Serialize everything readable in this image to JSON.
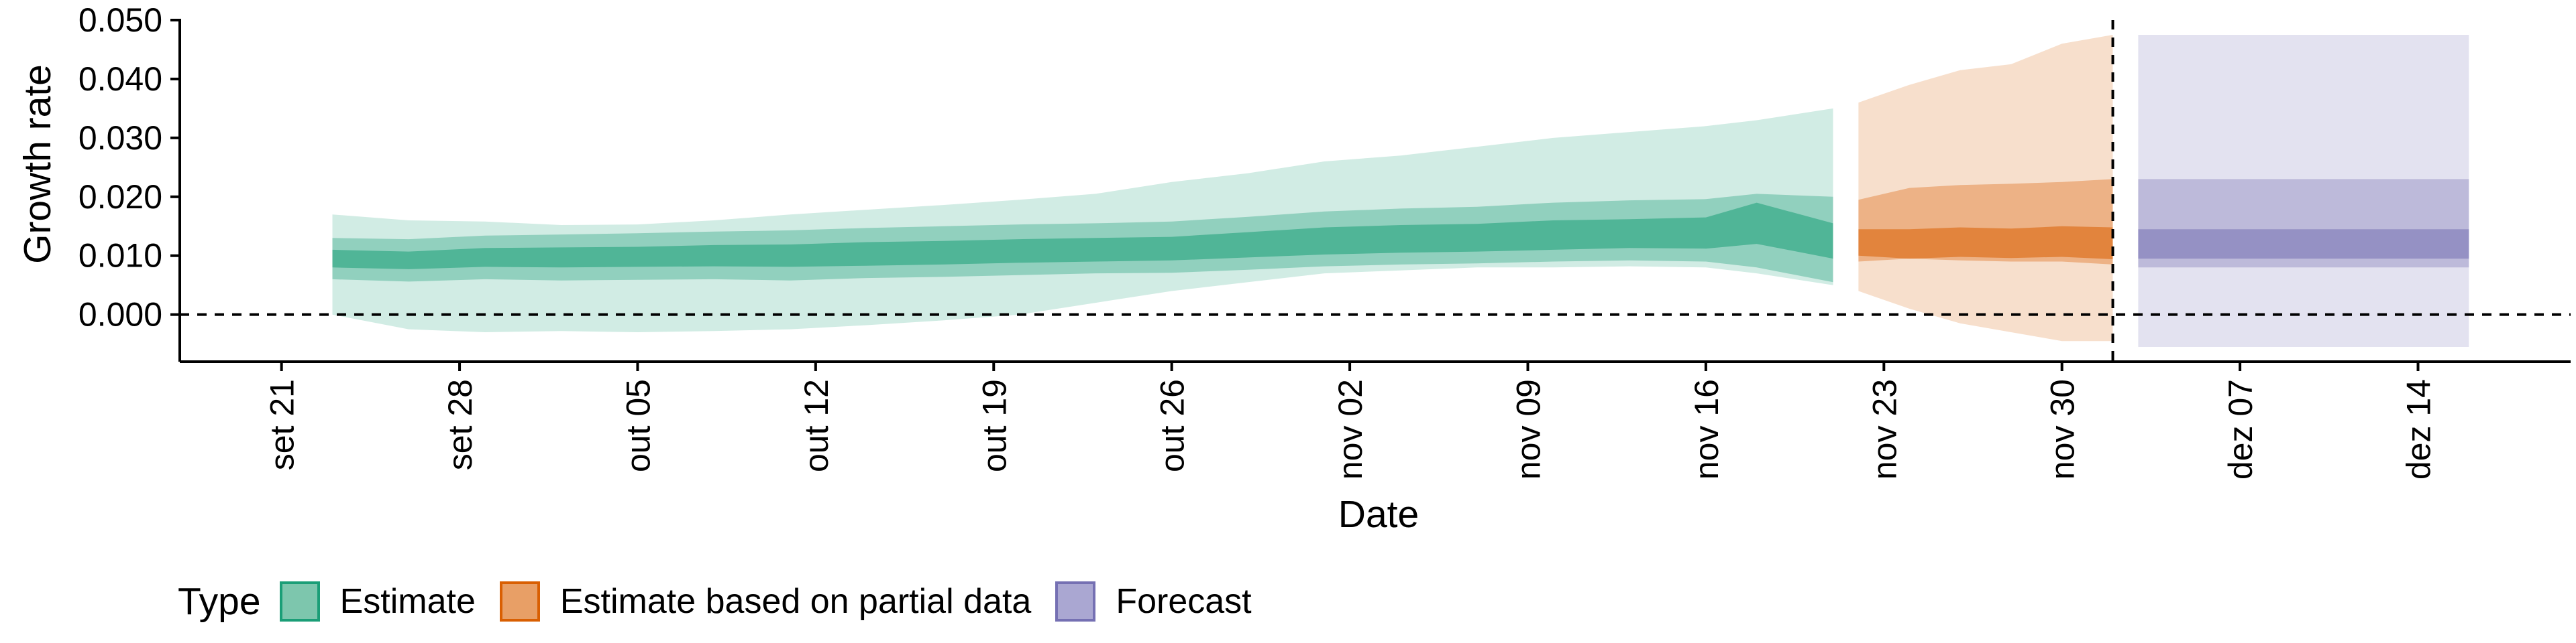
{
  "chart_data": {
    "type": "area",
    "title": "",
    "xlabel": "Date",
    "ylabel": "Growth rate",
    "ylim": [
      -0.008,
      0.05
    ],
    "xlim": [
      "2020-09-17",
      "2020-12-20"
    ],
    "y_ticks": [
      "0.000",
      "0.010",
      "0.020",
      "0.030",
      "0.040",
      "0.050"
    ],
    "x_ticks": [
      {
        "date": "2020-09-21",
        "label": "set 21"
      },
      {
        "date": "2020-09-28",
        "label": "set 28"
      },
      {
        "date": "2020-10-05",
        "label": "out 05"
      },
      {
        "date": "2020-10-12",
        "label": "out 12"
      },
      {
        "date": "2020-10-19",
        "label": "out 19"
      },
      {
        "date": "2020-10-26",
        "label": "out 26"
      },
      {
        "date": "2020-11-02",
        "label": "nov 02"
      },
      {
        "date": "2020-11-09",
        "label": "nov 09"
      },
      {
        "date": "2020-11-16",
        "label": "nov 16"
      },
      {
        "date": "2020-11-23",
        "label": "nov 23"
      },
      {
        "date": "2020-11-30",
        "label": "nov 30"
      },
      {
        "date": "2020-12-07",
        "label": "dez 07"
      },
      {
        "date": "2020-12-14",
        "label": "dez 14"
      }
    ],
    "reference_lines": {
      "horizontal_y": 0.0,
      "vertical_date": "2020-12-02"
    },
    "grid": false,
    "legend_position": "bottom",
    "legend_title": "Type",
    "series": [
      {
        "name": "Estimate",
        "color": "#1b9e77",
        "x": [
          "2020-09-23",
          "2020-09-26",
          "2020-09-29",
          "2020-10-02",
          "2020-10-05",
          "2020-10-08",
          "2020-10-11",
          "2020-10-14",
          "2020-10-17",
          "2020-10-20",
          "2020-10-23",
          "2020-10-26",
          "2020-10-29",
          "2020-11-01",
          "2020-11-04",
          "2020-11-07",
          "2020-11-10",
          "2020-11-13",
          "2020-11-16",
          "2020-11-18",
          "2020-11-21"
        ],
        "median": [
          0.0095,
          0.0092,
          0.0097,
          0.0097,
          0.0098,
          0.01,
          0.01,
          0.0103,
          0.0105,
          0.0108,
          0.011,
          0.0112,
          0.0118,
          0.0125,
          0.0128,
          0.013,
          0.0134,
          0.0137,
          0.0138,
          0.0155,
          0.0125
        ],
        "inner_lower": [
          0.008,
          0.0077,
          0.0081,
          0.008,
          0.0081,
          0.0082,
          0.0081,
          0.0083,
          0.0085,
          0.0088,
          0.009,
          0.0092,
          0.0097,
          0.0102,
          0.0105,
          0.0107,
          0.011,
          0.0113,
          0.0112,
          0.012,
          0.0095
        ],
        "inner_upper": [
          0.011,
          0.0107,
          0.0113,
          0.0114,
          0.0115,
          0.0118,
          0.0119,
          0.0123,
          0.0125,
          0.0128,
          0.013,
          0.0132,
          0.014,
          0.0148,
          0.0152,
          0.0154,
          0.016,
          0.0162,
          0.0165,
          0.019,
          0.0155
        ],
        "lower_50": [
          0.006,
          0.0056,
          0.006,
          0.0058,
          0.0059,
          0.006,
          0.0058,
          0.0062,
          0.0064,
          0.0067,
          0.007,
          0.0071,
          0.0076,
          0.0082,
          0.0085,
          0.0087,
          0.009,
          0.0092,
          0.009,
          0.008,
          0.0055
        ],
        "upper_50": [
          0.013,
          0.0128,
          0.0134,
          0.0136,
          0.0138,
          0.0141,
          0.0143,
          0.0147,
          0.015,
          0.0153,
          0.0155,
          0.0158,
          0.0166,
          0.0175,
          0.018,
          0.0183,
          0.019,
          0.0194,
          0.0196,
          0.0205,
          0.02
        ],
        "lower_90": [
          0.0,
          -0.0025,
          -0.003,
          -0.0028,
          -0.003,
          -0.0028,
          -0.0025,
          -0.0018,
          -0.001,
          0.0,
          0.002,
          0.004,
          0.0055,
          0.007,
          0.0075,
          0.008,
          0.008,
          0.0082,
          0.008,
          0.007,
          0.005
        ],
        "upper_90": [
          0.017,
          0.016,
          0.0158,
          0.0152,
          0.0153,
          0.016,
          0.017,
          0.0178,
          0.0186,
          0.0195,
          0.0205,
          0.0225,
          0.024,
          0.026,
          0.027,
          0.0285,
          0.03,
          0.031,
          0.032,
          0.033,
          0.035
        ]
      },
      {
        "name": "Estimate based on partial data",
        "color": "#d95f02",
        "x": [
          "2020-11-22",
          "2020-11-24",
          "2020-11-26",
          "2020-11-28",
          "2020-11-30",
          "2020-12-02"
        ],
        "median": [
          0.0125,
          0.012,
          0.0125,
          0.0122,
          0.0125,
          0.012
        ],
        "inner_lower": [
          0.01,
          0.0095,
          0.0098,
          0.0096,
          0.0098,
          0.0094
        ],
        "inner_upper": [
          0.0145,
          0.0145,
          0.0148,
          0.0146,
          0.015,
          0.0148
        ],
        "lower_50": [
          0.009,
          0.0095,
          0.0092,
          0.009,
          0.009,
          0.0085
        ],
        "upper_50": [
          0.0195,
          0.0215,
          0.022,
          0.0222,
          0.0225,
          0.023
        ],
        "lower_90": [
          0.004,
          0.001,
          -0.0015,
          -0.003,
          -0.0045,
          -0.0045
        ],
        "upper_90": [
          0.036,
          0.039,
          0.0415,
          0.0425,
          0.046,
          0.0475
        ]
      },
      {
        "name": "Forecast",
        "color": "#7570b3",
        "x": [
          "2020-12-03",
          "2020-12-16"
        ],
        "median": [
          0.012,
          0.012
        ],
        "inner_lower": [
          0.0095,
          0.0095
        ],
        "inner_upper": [
          0.0145,
          0.0145
        ],
        "lower_50": [
          0.008,
          0.008
        ],
        "upper_50": [
          0.023,
          0.023
        ],
        "lower_90": [
          -0.0055,
          -0.0055
        ],
        "upper_90": [
          0.0475,
          0.0475
        ]
      }
    ]
  },
  "legend": {
    "title": "Type",
    "items": [
      {
        "label": "Estimate",
        "fill": "#7dc6ad",
        "border": "#1b9e77"
      },
      {
        "label": "Estimate based on partial data",
        "fill": "#e89f66",
        "border": "#d95f02"
      },
      {
        "label": "Forecast",
        "fill": "#aaa7d2",
        "border": "#7570b3"
      }
    ]
  }
}
